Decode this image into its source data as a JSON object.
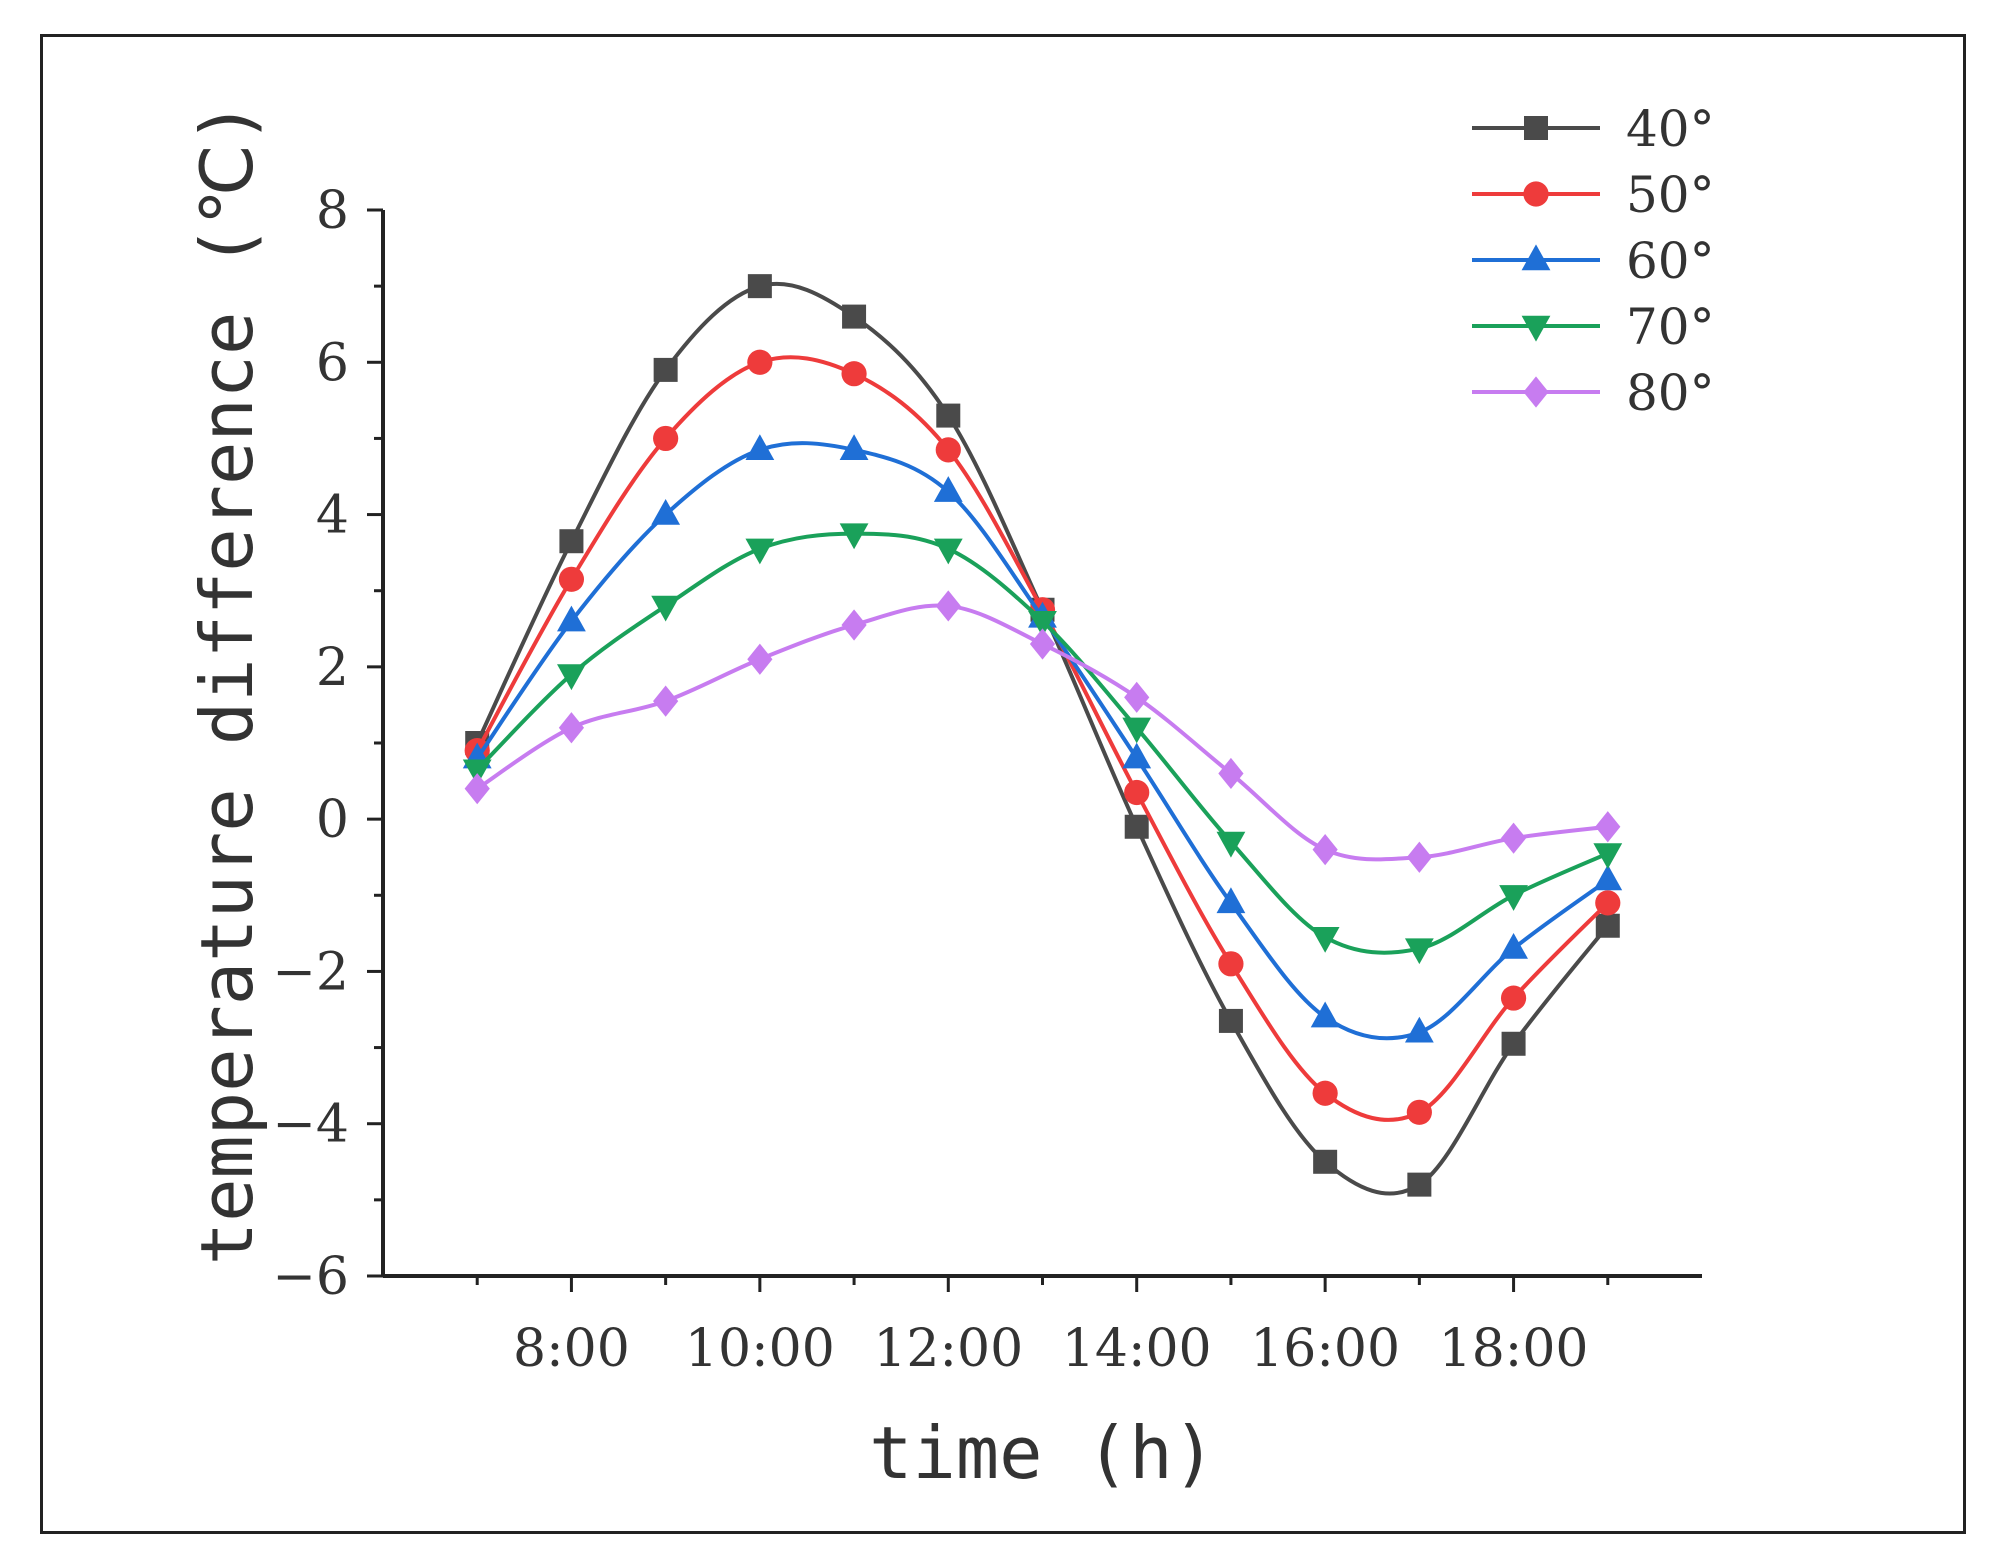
{
  "chart_data": {
    "type": "line",
    "xlabel": "time (h)",
    "ylabel": "temperature difference (℃)",
    "x": [
      7,
      8,
      9,
      10,
      11,
      12,
      13,
      14,
      15,
      16,
      17,
      18,
      19
    ],
    "xlim": [
      6,
      20
    ],
    "ylim": [
      -6,
      8
    ],
    "x_tick_values": [
      8,
      10,
      12,
      14,
      16,
      18
    ],
    "x_tick_labels": [
      "8:00",
      "10:00",
      "12:00",
      "14:00",
      "16:00",
      "18:00"
    ],
    "y_ticks": [
      -6,
      -4,
      -2,
      0,
      2,
      4,
      6,
      8
    ],
    "y_tick_labels": [
      "−6",
      "−4",
      "−2",
      "0",
      "2",
      "4",
      "6",
      "8"
    ],
    "grid": false,
    "legend_position": "top-right",
    "series": [
      {
        "name": "40°",
        "color": "#4a4a4a",
        "marker": "square",
        "values": [
          1.0,
          3.65,
          5.9,
          7.0,
          6.6,
          5.3,
          2.75,
          -0.1,
          -2.65,
          -4.5,
          -4.8,
          -2.95,
          -1.4
        ]
      },
      {
        "name": "50°",
        "color": "#ee3b3b",
        "marker": "circle",
        "values": [
          0.9,
          3.15,
          5.0,
          6.0,
          5.85,
          4.85,
          2.75,
          0.35,
          -1.9,
          -3.6,
          -3.85,
          -2.35,
          -1.1
        ]
      },
      {
        "name": "60°",
        "color": "#1f6fd6",
        "marker": "triangle-up",
        "values": [
          0.8,
          2.6,
          4.0,
          4.85,
          4.85,
          4.3,
          2.65,
          0.8,
          -1.1,
          -2.6,
          -2.8,
          -1.7,
          -0.8
        ]
      },
      {
        "name": "70°",
        "color": "#1aa15a",
        "marker": "triangle-down",
        "values": [
          0.65,
          1.9,
          2.8,
          3.55,
          3.75,
          3.55,
          2.6,
          1.2,
          -0.3,
          -1.55,
          -1.7,
          -1.0,
          -0.45
        ]
      },
      {
        "name": "80°",
        "color": "#c77cf0",
        "marker": "diamond",
        "values": [
          0.4,
          1.2,
          1.55,
          2.1,
          2.55,
          2.8,
          2.3,
          1.6,
          0.6,
          -0.4,
          -0.5,
          -0.25,
          -0.1
        ]
      }
    ]
  }
}
